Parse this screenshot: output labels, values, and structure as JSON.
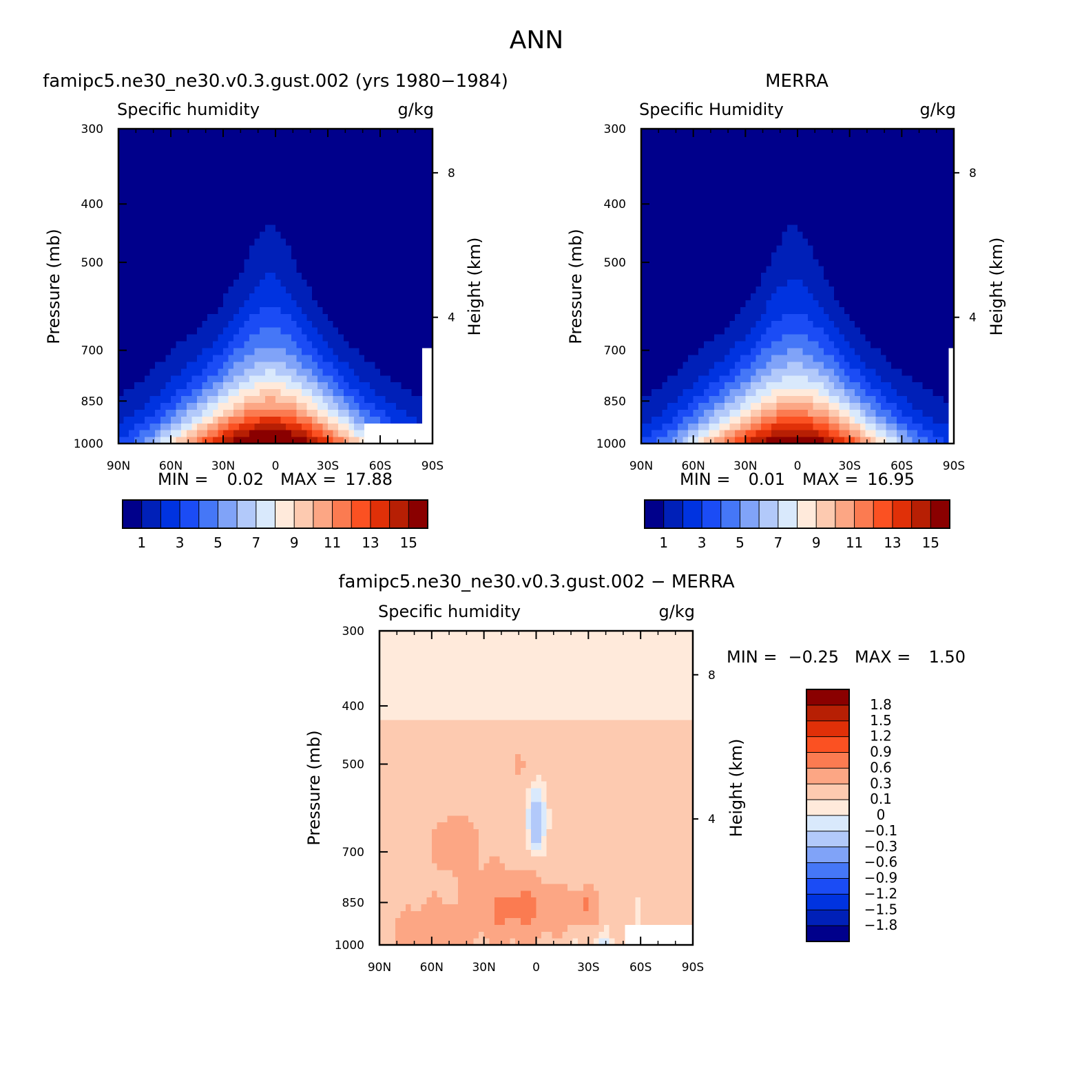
{
  "figure": {
    "title": "ANN"
  },
  "palette_abs": [
    "#00008b",
    "#0020b8",
    "#0033e0",
    "#1b4cf5",
    "#4577f7",
    "#80a3f8",
    "#b2c9fa",
    "#d9e9fc",
    "#ffeadb",
    "#fdcab0",
    "#fca684",
    "#fb7b51",
    "#fb5122",
    "#e03008",
    "#b71f04",
    "#8a0000"
  ],
  "palette_diff": [
    "#00008b",
    "#0020b8",
    "#0033e0",
    "#1b4cf5",
    "#4577f7",
    "#80a3f8",
    "#b2c9fa",
    "#d9e9fc",
    "#ffeadb",
    "#fdcab0",
    "#fca684",
    "#fb7b51",
    "#fb5122",
    "#e03008",
    "#b71f04",
    "#8a0000"
  ],
  "chart_data": [
    {
      "type": "heatmap",
      "id": "model",
      "title": "famipc5.ne30_ne30.v0.3.gust.002 (yrs 1980−1984)",
      "left_label": "Specific humidity",
      "units": "g/kg",
      "ylabel": "Pressure (mb)",
      "ylabel_right": "Height (km)",
      "x_ticks": [
        "90N",
        "60N",
        "30N",
        "0",
        "30S",
        "60S",
        "90S"
      ],
      "x_tick_values": [
        90,
        60,
        30,
        0,
        -30,
        -60,
        -90
      ],
      "xlim": [
        90,
        -90
      ],
      "y_ticks": [
        "300",
        "400",
        "500",
        "700",
        "850",
        "1000"
      ],
      "y_tick_values": [
        300,
        400,
        500,
        700,
        850,
        1000
      ],
      "ylim": [
        1000,
        300
      ],
      "y_scale": "log",
      "right_ticks": [
        "8",
        "4"
      ],
      "right_tick_pressure": [
        355,
        617
      ],
      "min_label": "MIN =",
      "min_value": "0.02",
      "max_label": "MAX =",
      "max_value": "17.88",
      "peak": 17.88,
      "levels": [
        1,
        2,
        3,
        4,
        5,
        6,
        7,
        8,
        9,
        10,
        11,
        12,
        13,
        14,
        15
      ],
      "colorbar_labels": [
        "1",
        "3",
        "5",
        "7",
        "9",
        "11",
        "13",
        "15"
      ],
      "missing_region": [
        {
          "lat": [
            -50,
            -90
          ],
          "p": [
            925,
            1000
          ]
        },
        {
          "lat": [
            -85,
            -90
          ],
          "p": [
            700,
            925
          ]
        }
      ]
    },
    {
      "type": "heatmap",
      "id": "obs",
      "title": "MERRA",
      "left_label": "Specific Humidity",
      "units": "g/kg",
      "ylabel": "Pressure (mb)",
      "ylabel_right": "Height (km)",
      "x_ticks": [
        "90N",
        "60N",
        "30N",
        "0",
        "30S",
        "60S",
        "90S"
      ],
      "x_tick_values": [
        90,
        60,
        30,
        0,
        -30,
        -60,
        -90
      ],
      "xlim": [
        90,
        -90
      ],
      "y_ticks": [
        "300",
        "400",
        "500",
        "700",
        "850",
        "1000"
      ],
      "y_tick_values": [
        300,
        400,
        500,
        700,
        850,
        1000
      ],
      "ylim": [
        1000,
        300
      ],
      "y_scale": "log",
      "right_ticks": [
        "8",
        "4"
      ],
      "right_tick_pressure": [
        355,
        617
      ],
      "min_label": "MIN =",
      "min_value": "0.01",
      "max_label": "MAX =",
      "max_value": "16.95",
      "peak": 16.95,
      "levels": [
        1,
        2,
        3,
        4,
        5,
        6,
        7,
        8,
        9,
        10,
        11,
        12,
        13,
        14,
        15
      ],
      "colorbar_labels": [
        "1",
        "3",
        "5",
        "7",
        "9",
        "11",
        "13",
        "15"
      ],
      "missing_region": [
        {
          "lat": [
            -88,
            -90
          ],
          "p": [
            700,
            1000
          ]
        }
      ]
    },
    {
      "type": "heatmap",
      "id": "diff",
      "title": "famipc5.ne30_ne30.v0.3.gust.002 − MERRA",
      "left_label": "Specific humidity",
      "units": "g/kg",
      "ylabel": "Pressure (mb)",
      "ylabel_right": "Height (km)",
      "x_ticks": [
        "90N",
        "60N",
        "30N",
        "0",
        "30S",
        "60S",
        "90S"
      ],
      "x_tick_values": [
        90,
        60,
        30,
        0,
        -30,
        -60,
        -90
      ],
      "xlim": [
        90,
        -90
      ],
      "y_ticks": [
        "300",
        "400",
        "500",
        "700",
        "850",
        "1000"
      ],
      "y_tick_values": [
        300,
        400,
        500,
        700,
        850,
        1000
      ],
      "ylim": [
        1000,
        300
      ],
      "y_scale": "log",
      "right_ticks": [
        "8",
        "4"
      ],
      "right_tick_pressure": [
        355,
        617
      ],
      "min_label": "MIN =",
      "min_value": "−0.25",
      "max_label": "MAX =",
      "max_value": "1.50",
      "levels": [
        -1.8,
        -1.5,
        -1.2,
        -0.9,
        -0.6,
        -0.3,
        -0.1,
        0,
        0.1,
        0.3,
        0.6,
        0.9,
        1.2,
        1.5,
        1.8
      ],
      "colorbar_labels": [
        "1.8",
        "1.5",
        "1.2",
        "0.9",
        "0.6",
        "0.3",
        "0.1",
        "0",
        "−0.1",
        "−0.3",
        "−0.6",
        "−0.9",
        "−1.2",
        "−1.5",
        "−1.8"
      ],
      "missing_region": [
        {
          "lat": [
            -50,
            -90
          ],
          "p": [
            925,
            1000
          ]
        }
      ]
    }
  ]
}
